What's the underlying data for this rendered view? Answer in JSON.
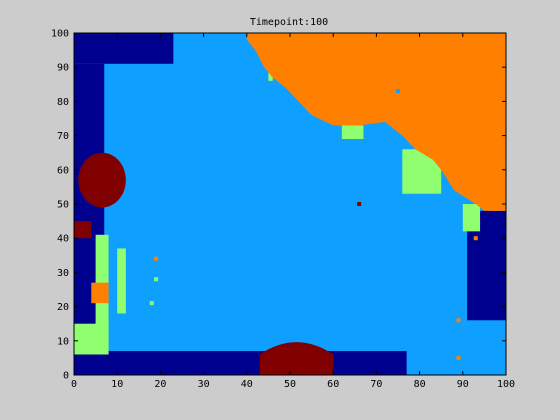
{
  "chart_data": {
    "type": "heatmap",
    "title": "Timepoint:100",
    "xlabel": "",
    "ylabel": "",
    "xlim": [
      0,
      100
    ],
    "ylim": [
      0,
      100
    ],
    "xticks": [
      0,
      10,
      20,
      30,
      40,
      50,
      60,
      70,
      80,
      90,
      100
    ],
    "yticks": [
      0,
      10,
      20,
      30,
      40,
      50,
      60,
      70,
      80,
      90,
      100
    ],
    "grid": false,
    "legend": "none",
    "background_state": "light-blue",
    "colormap": {
      "dark-blue": "#00008f",
      "light-blue": "#0f9fff",
      "light-green": "#8fff70",
      "orange": "#ff7f00",
      "dark-red": "#800000"
    },
    "regions": [
      {
        "state": "dark-blue",
        "x": [
          0,
          23
        ],
        "y": [
          91,
          100
        ]
      },
      {
        "state": "dark-blue",
        "x": [
          0,
          7
        ],
        "y": [
          0,
          91
        ]
      },
      {
        "state": "dark-blue",
        "x": [
          0,
          77
        ],
        "y": [
          0,
          7
        ]
      },
      {
        "state": "dark-blue",
        "x": [
          91,
          100
        ],
        "y": [
          16,
          48
        ]
      },
      {
        "state": "dark-red",
        "x": [
          43,
          60
        ],
        "y": [
          0,
          11
        ],
        "shape": "dome"
      },
      {
        "state": "dark-red",
        "x": [
          1,
          12
        ],
        "y": [
          49,
          65
        ],
        "shape": "blob"
      },
      {
        "state": "dark-red",
        "x": [
          0,
          4
        ],
        "y": [
          40,
          45
        ]
      },
      {
        "state": "light-green",
        "x": [
          0,
          8
        ],
        "y": [
          6,
          15
        ]
      },
      {
        "state": "light-green",
        "x": [
          5,
          8
        ],
        "y": [
          6,
          41
        ]
      },
      {
        "state": "light-green",
        "x": [
          10,
          12
        ],
        "y": [
          18,
          37
        ]
      },
      {
        "state": "light-green",
        "x": [
          62,
          67
        ],
        "y": [
          69,
          73
        ]
      },
      {
        "state": "light-green",
        "x": [
          76,
          85
        ],
        "y": [
          53,
          66
        ]
      },
      {
        "state": "light-green",
        "x": [
          90,
          94
        ],
        "y": [
          42,
          50
        ]
      },
      {
        "state": "light-green",
        "x": [
          45,
          46
        ],
        "y": [
          86,
          91
        ]
      },
      {
        "state": "orange",
        "x": [
          40,
          100
        ],
        "y": [
          48,
          100
        ],
        "shape": "front"
      },
      {
        "state": "orange",
        "x": [
          4,
          8
        ],
        "y": [
          21,
          27
        ]
      }
    ],
    "points": [
      {
        "state": "light-blue",
        "x": 75,
        "y": 83
      },
      {
        "state": "light-blue",
        "x": 48,
        "y": 66
      },
      {
        "state": "dark-red",
        "x": 66,
        "y": 50
      },
      {
        "state": "orange",
        "x": 93,
        "y": 40
      },
      {
        "state": "orange",
        "x": 19,
        "y": 34
      },
      {
        "state": "light-green",
        "x": 19,
        "y": 28
      },
      {
        "state": "light-green",
        "x": 18,
        "y": 21
      },
      {
        "state": "orange",
        "x": 89,
        "y": 16
      },
      {
        "state": "orange",
        "x": 89,
        "y": 5
      }
    ]
  }
}
